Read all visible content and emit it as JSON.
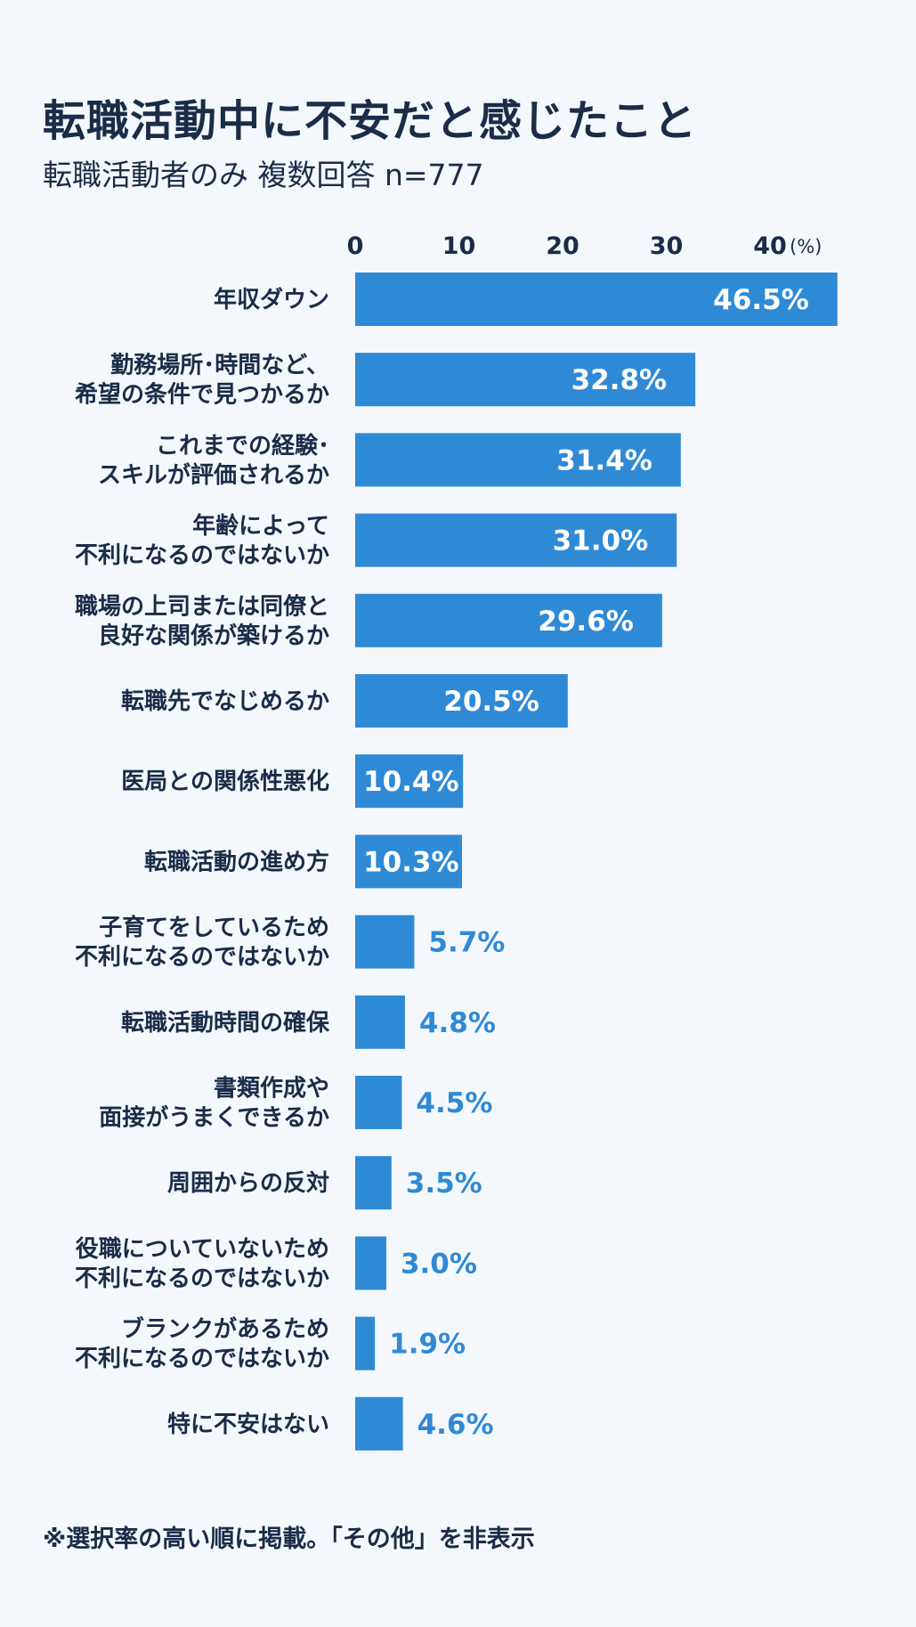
{
  "title": "転職活動中に不安だと感じたこと",
  "subtitle": "転職活動者のみ 複数回答 n=777",
  "note": "※選択率の高い順に掲載。「その他」を非表示",
  "colors": {
    "bar": "#2f8ad6",
    "text": "#1b2c48",
    "background": "#f4f8fd"
  },
  "chart_data": {
    "type": "bar",
    "orientation": "horizontal",
    "unit": "(%)",
    "xlim": [
      0,
      40
    ],
    "ticks": [
      0,
      10,
      20,
      30,
      40
    ],
    "axis_position": "top",
    "grid": false,
    "categories": [
      [
        "年収ダウン"
      ],
      [
        "勤務場所･時間など、",
        "希望の条件で見つかるか"
      ],
      [
        "これまでの経験･",
        "スキルが評価されるか"
      ],
      [
        "年齢によって",
        "不利になるのではないか"
      ],
      [
        "職場の上司または同僚と",
        "良好な関係が築けるか"
      ],
      [
        "転職先でなじめるか"
      ],
      [
        "医局との関係性悪化"
      ],
      [
        "転職活動の進め方"
      ],
      [
        "子育てをしているため",
        "不利になるのではないか"
      ],
      [
        "転職活動時間の確保"
      ],
      [
        "書類作成や",
        "面接がうまくできるか"
      ],
      [
        "周囲からの反対"
      ],
      [
        "役職についていないため",
        "不利になるのではないか"
      ],
      [
        "ブランクがあるため",
        "不利になるのではないか"
      ],
      [
        "特に不安はない"
      ]
    ],
    "values": [
      46.5,
      32.8,
      31.4,
      31.0,
      29.6,
      20.5,
      10.4,
      10.3,
      5.7,
      4.8,
      4.5,
      3.5,
      3.0,
      1.9,
      4.6
    ],
    "value_labels": [
      "46.5%",
      "32.8%",
      "31.4%",
      "31.0%",
      "29.6%",
      "20.5%",
      "10.4%",
      "10.3%",
      "5.7%",
      "4.8%",
      "4.5%",
      "3.5%",
      "3.0%",
      "1.9%",
      "4.6%"
    ]
  }
}
